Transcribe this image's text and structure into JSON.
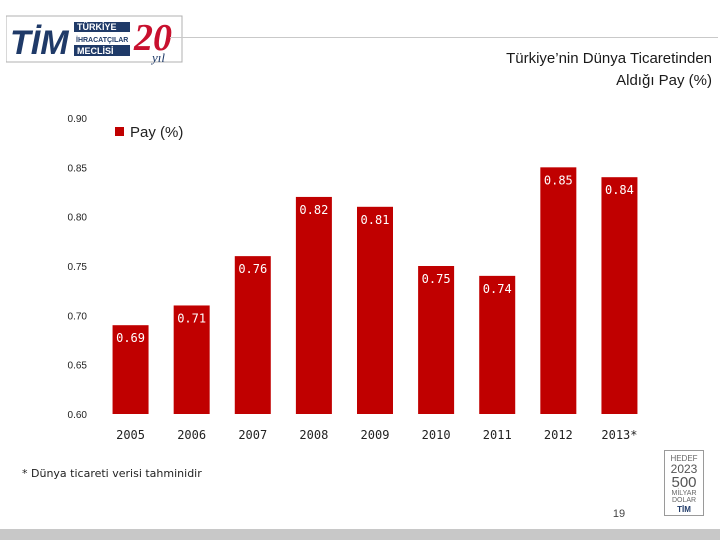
{
  "header": {
    "logo_main": "TİM",
    "logo_line1": "TÜRKİYE",
    "logo_line2": "İHRACATÇILAR",
    "logo_line3": "MECLİSİ",
    "logo_anniv": "20",
    "logo_anniv_suffix": "yıl",
    "title_line1": "Türkiye’nin Dünya Ticaretinden",
    "title_line2": "Aldığı Pay (%)"
  },
  "chart_data": {
    "type": "bar",
    "categories": [
      "2005",
      "2006",
      "2007",
      "2008",
      "2009",
      "2010",
      "2011",
      "2012",
      "2013*"
    ],
    "series": [
      {
        "name": "Pay (%)",
        "values": [
          0.69,
          0.71,
          0.76,
          0.82,
          0.81,
          0.75,
          0.74,
          0.85,
          0.84
        ]
      }
    ],
    "data_labels": [
      "0.69",
      "0.71",
      "0.76",
      "0.82",
      "0.81",
      "0.75",
      "0.74",
      "0.85",
      "0.84"
    ],
    "ylim": [
      0.6,
      0.9
    ],
    "yticks": [
      0.6,
      0.65,
      0.7,
      0.75,
      0.8,
      0.85,
      0.9
    ],
    "ytick_labels": [
      "0.60",
      "0.65",
      "0.70",
      "0.75",
      "0.80",
      "0.85",
      "0.90"
    ],
    "legend": {
      "label": "Pay (%)",
      "position": "top-left"
    },
    "bar_color": "#c00000",
    "grid": false
  },
  "footnote": "* Dünya ticareti verisi tahminidir",
  "badge": {
    "line1": "HEDEF",
    "line2": "2023",
    "line3": "500",
    "line4": "MİLYAR",
    "line5": "DOLAR",
    "line6": "TİM"
  },
  "page_number": "19",
  "colors": {
    "brand_navy": "#1f3a68",
    "brand_red": "#c8102e",
    "bar": "#c00000"
  }
}
